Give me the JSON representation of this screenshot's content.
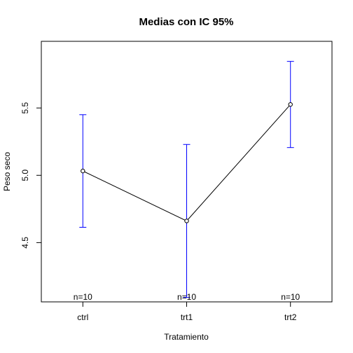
{
  "chart_data": {
    "type": "line",
    "title": "Medias con IC 95%",
    "xlabel": "Tratamiento",
    "ylabel": "Peso seco",
    "categories": [
      "ctrl",
      "trt1",
      "trt2"
    ],
    "means": [
      5.032,
      4.661,
      5.526
    ],
    "ci_lower": [
      4.614,
      4.093,
      5.206
    ],
    "ci_upper": [
      5.45,
      5.229,
      5.846
    ],
    "n_labels": [
      "n=10",
      "n=10",
      "n=10"
    ],
    "y_ticks": [
      4.5,
      5.0,
      5.5
    ],
    "y_tick_labels": [
      "4.5",
      "5.0",
      "5.5"
    ],
    "ylim": [
      4.06,
      5.995
    ],
    "grid": false,
    "colors": {
      "ci_bars": "#0000ff",
      "line": "#000000",
      "points": "#000000"
    }
  }
}
